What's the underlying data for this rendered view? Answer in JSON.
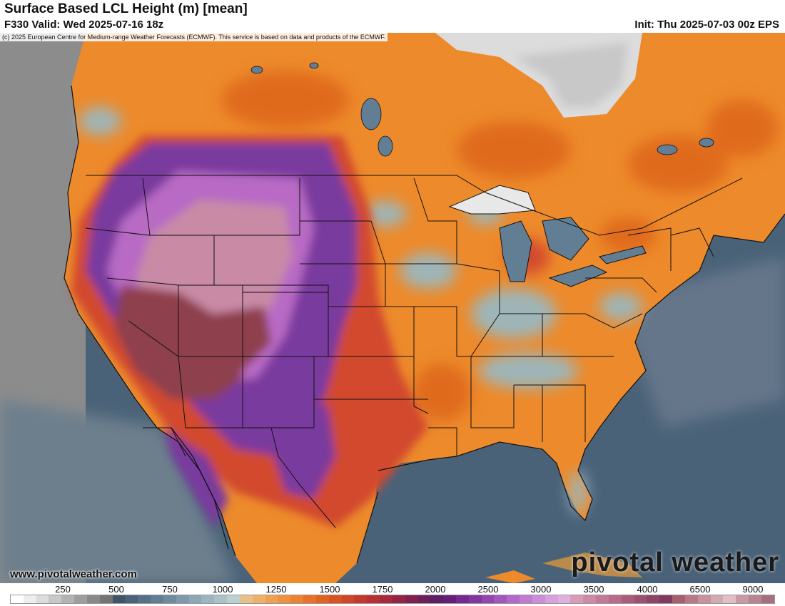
{
  "header": {
    "title": "Surface Based LCL Height (m) [mean]",
    "valid": "F330 Valid: Wed 2025-07-16 18z",
    "init": "Init: Thu 2025-07-03 00z EPS"
  },
  "copyright": "(c) 2025 European Centre for Medium-range Weather Forecasts (ECMWF). This service is based on data and products of the ECMWF.",
  "site_url": "www.pivotalweather.com",
  "watermark": "pivotal weather",
  "colors": {
    "ocean": "#4a6278",
    "ocean_light": "#6d7f8d",
    "pacific_gray": "#8c8c8c",
    "hudson_bay": "#d9d9d9",
    "orange": "#ed8a2b",
    "orange_dark": "#e06a1f",
    "red": "#d24a2e",
    "light_blue": "#9ab8c0",
    "purple": "#7a3a9e",
    "purple_light": "#b86ac4",
    "pink": "#c98aa6",
    "maroon": "#8e3f4e",
    "border": "#111111"
  },
  "colorbar": {
    "labels": [
      "250",
      "500",
      "750",
      "1000",
      "1250",
      "1500",
      "1750",
      "2000",
      "2500",
      "3000",
      "3500",
      "4000",
      "6500",
      "9000"
    ],
    "colors": [
      "#ffffff",
      "#eeeeee",
      "#dcdcdc",
      "#c8c8c8",
      "#b3b3b3",
      "#9e9e9e",
      "#898989",
      "#747474",
      "#3f5468",
      "#4a6278",
      "#557089",
      "#627e95",
      "#6f8ba0",
      "#7e99ab",
      "#8da7b6",
      "#9cb5c0",
      "#acc2c9",
      "#bccfd2",
      "#e8c08a",
      "#f0b06a",
      "#f2a050",
      "#f0913e",
      "#ed8230",
      "#e87326",
      "#e0631f",
      "#d8531f",
      "#cf4525",
      "#c4392c",
      "#b82f35",
      "#a8283d",
      "#952347",
      "#812050",
      "#6e1e5a",
      "#5e1e66",
      "#651f7a",
      "#732990",
      "#8236a2",
      "#9345b2",
      "#a456c0",
      "#b368cb",
      "#c07bd3",
      "#cc8ed9",
      "#d7a1dd",
      "#dfb1e0",
      "#d99bb7",
      "#cf8aa6",
      "#c47a97",
      "#b86a89",
      "#ab5c7c",
      "#9d4f70",
      "#8e4466",
      "#7f3a5d",
      "#a85f6f",
      "#b97885",
      "#c8919b",
      "#d5a9b1",
      "#e0bfc5",
      "#c99aa3",
      "#b88491",
      "#a66f80"
    ]
  }
}
